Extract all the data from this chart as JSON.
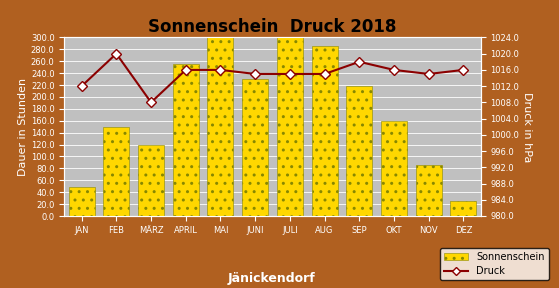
{
  "title": "Sonnenschein  Druck 2018",
  "xlabel": "Jänickendorf",
  "ylabel_left": "Dauer in Stunden",
  "ylabel_right": "Druck in hPa",
  "months": [
    "JAN",
    "FEB",
    "MÄRZ",
    "APRIL",
    "MAI",
    "JUNI",
    "JULI",
    "AUG",
    "SEP",
    "OKT",
    "NOV",
    "DEZ"
  ],
  "sunshine": [
    48,
    150,
    120,
    255,
    300,
    230,
    300,
    285,
    218,
    160,
    85,
    25
  ],
  "pressure": [
    1012,
    1020,
    1008,
    1016,
    1016,
    1015,
    1015,
    1015,
    1018,
    1016,
    1015,
    1016
  ],
  "bar_color": "#FFD700",
  "ylim_left": [
    0,
    300
  ],
  "ylim_right": [
    980,
    1024
  ],
  "yticks_left": [
    0,
    20,
    40,
    60,
    80,
    100,
    120,
    140,
    160,
    180,
    200,
    220,
    240,
    260,
    280,
    300
  ],
  "yticks_right_vals": [
    980,
    984,
    988,
    992,
    996,
    1000,
    1004,
    1008,
    1012,
    1016,
    1020,
    1024
  ],
  "background_color": "#C0C0C0",
  "outer_bg": "#B06020",
  "line_color": "#8B0000",
  "marker_facecolor": "#FFFFFF",
  "marker_edgecolor": "#8B0000",
  "title_fontsize": 12,
  "tick_fontsize": 6,
  "label_fontsize": 8,
  "xlabel_fontsize": 9
}
